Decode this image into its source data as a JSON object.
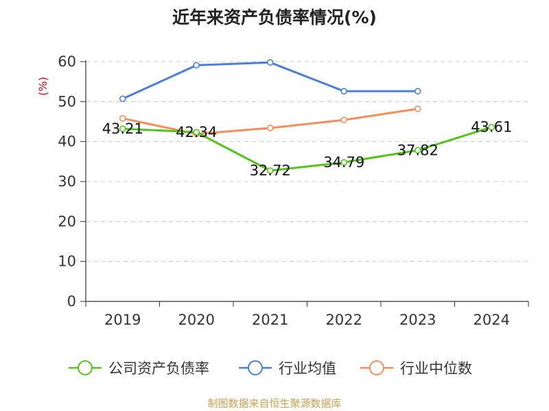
{
  "chart_data": {
    "type": "line",
    "title": "近年来资产负债率情况(%)",
    "ylabel": "(%)",
    "xlabel": "",
    "categories": [
      "2019",
      "2020",
      "2021",
      "2022",
      "2023",
      "2024"
    ],
    "yticks": [
      0,
      10,
      20,
      30,
      40,
      50,
      60
    ],
    "ylim": [
      0,
      60
    ],
    "grid": true,
    "legend_position": "bottom",
    "series": [
      {
        "name": "公司资产负债率",
        "color": "#52c41a",
        "values": [
          43.21,
          42.34,
          32.72,
          34.79,
          37.82,
          43.61
        ],
        "labels": [
          "43.21",
          "42.34",
          "32.72",
          "34.79",
          "37.82",
          "43.61"
        ]
      },
      {
        "name": "行业均值",
        "color": "#4a7fd8",
        "values": [
          50.7,
          59.1,
          59.8,
          52.6,
          52.6,
          null
        ]
      },
      {
        "name": "行业中位数",
        "color": "#f58d5a",
        "values": [
          45.8,
          41.9,
          43.4,
          45.4,
          48.2,
          null
        ]
      }
    ]
  },
  "source": "制图数据来自恒生聚源数据库"
}
